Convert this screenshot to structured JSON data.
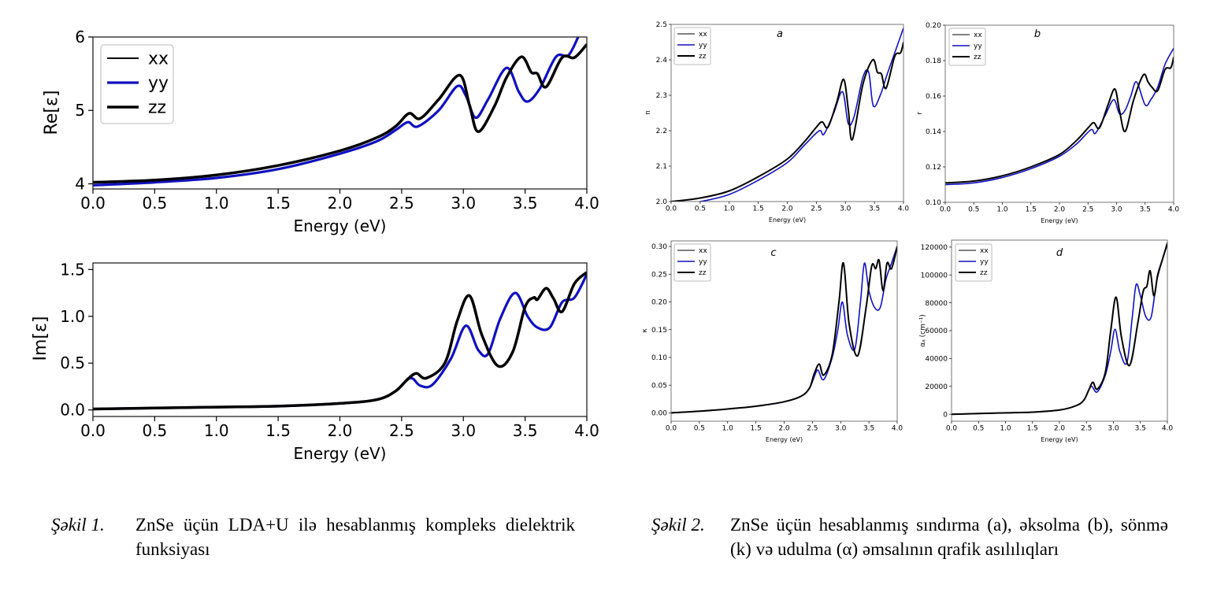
{
  "figure1_caption": {
    "label": "Şəkil 1.",
    "text": "ZnSe üçün LDA+U ilə hesablanmış kompleks dielektrik funksiyası"
  },
  "figure2_caption": {
    "label": "Şəkil 2.",
    "text": "ZnSe üçün hesablanmış sındırma (a), əksolma (b), sönmə (k) və udulma (α) əmsalının qrafik asılılıqları"
  },
  "colors": {
    "xx": "#000000",
    "yy": "#1010c0",
    "zz": "#000000"
  },
  "chart_data": [
    {
      "id": "re",
      "type": "line",
      "title": "",
      "xlabel": "Energy (eV)",
      "ylabel": "Re[ε]",
      "xlim": [
        0,
        4
      ],
      "ylim": [
        3.93,
        6
      ],
      "xticks": [
        "0.0",
        "0.5",
        "1.0",
        "1.5",
        "2.0",
        "2.5",
        "3.0",
        "3.5",
        "4.0"
      ],
      "yticks": [
        "4",
        "5",
        "6"
      ],
      "legend": [
        "xx",
        "yy",
        "zz"
      ],
      "legend_position": "top-left",
      "series": [
        {
          "name": "xx",
          "x": [
            0,
            0.5,
            1,
            1.5,
            2,
            2.3,
            2.45,
            2.56,
            2.65,
            2.8,
            2.97,
            3.05,
            3.12,
            3.25,
            3.35,
            3.47,
            3.55,
            3.6,
            3.67,
            3.8,
            3.9,
            4
          ],
          "y": [
            4.02,
            4.05,
            4.12,
            4.25,
            4.45,
            4.63,
            4.78,
            4.96,
            4.89,
            5.15,
            5.48,
            5.07,
            4.71,
            5.05,
            5.45,
            5.73,
            5.52,
            5.5,
            5.32,
            5.72,
            5.72,
            5.9
          ]
        },
        {
          "name": "yy",
          "x": [
            0,
            0.5,
            1,
            1.5,
            2,
            2.3,
            2.45,
            2.55,
            2.63,
            2.8,
            2.95,
            3.02,
            3.1,
            3.2,
            3.35,
            3.45,
            3.52,
            3.62,
            3.75,
            3.85,
            3.93
          ],
          "y": [
            3.98,
            4.02,
            4.08,
            4.2,
            4.41,
            4.58,
            4.73,
            4.84,
            4.78,
            5.0,
            5.33,
            5.2,
            4.9,
            5.15,
            5.58,
            5.25,
            5.12,
            5.3,
            5.73,
            5.75,
            6.0
          ]
        },
        {
          "name": "zz",
          "x": [
            0,
            0.5,
            1,
            1.5,
            2,
            2.3,
            2.45,
            2.56,
            2.65,
            2.8,
            2.97,
            3.05,
            3.12,
            3.25,
            3.35,
            3.47,
            3.55,
            3.6,
            3.67,
            3.8,
            3.9,
            4
          ],
          "y": [
            4.02,
            4.05,
            4.12,
            4.25,
            4.45,
            4.63,
            4.78,
            4.96,
            4.89,
            5.15,
            5.48,
            5.07,
            4.71,
            5.05,
            5.45,
            5.73,
            5.52,
            5.5,
            5.32,
            5.72,
            5.72,
            5.9
          ]
        }
      ]
    },
    {
      "id": "im",
      "type": "line",
      "title": "",
      "xlabel": "Energy (eV)",
      "ylabel": "Im[ε]",
      "xlim": [
        0,
        4
      ],
      "ylim": [
        -0.07,
        1.57
      ],
      "xticks": [
        "0.0",
        "0.5",
        "1.0",
        "1.5",
        "2.0",
        "2.5",
        "3.0",
        "3.5",
        "4.0"
      ],
      "yticks": [
        "0.0",
        "0.5",
        "1.0",
        "1.5"
      ],
      "legend": [],
      "series": [
        {
          "name": "xx",
          "x": [
            0,
            0.5,
            1,
            1.5,
            2,
            2.3,
            2.45,
            2.55,
            2.62,
            2.7,
            2.85,
            2.95,
            3.05,
            3.15,
            3.28,
            3.4,
            3.5,
            3.57,
            3.6,
            3.67,
            3.73,
            3.8,
            3.9,
            4
          ],
          "y": [
            0.01,
            0.02,
            0.03,
            0.04,
            0.07,
            0.11,
            0.2,
            0.33,
            0.39,
            0.34,
            0.5,
            0.95,
            1.22,
            0.8,
            0.47,
            0.62,
            1.1,
            1.2,
            1.18,
            1.3,
            1.19,
            1.05,
            1.35,
            1.47
          ]
        },
        {
          "name": "yy",
          "x": [
            0,
            0.5,
            1,
            1.5,
            2,
            2.3,
            2.45,
            2.57,
            2.65,
            2.75,
            2.9,
            3.02,
            3.12,
            3.2,
            3.3,
            3.42,
            3.52,
            3.6,
            3.7,
            3.8,
            3.9,
            4
          ],
          "y": [
            0.01,
            0.02,
            0.03,
            0.04,
            0.07,
            0.11,
            0.2,
            0.34,
            0.26,
            0.27,
            0.55,
            0.9,
            0.64,
            0.6,
            0.98,
            1.25,
            1.0,
            0.88,
            0.88,
            1.15,
            1.2,
            1.45
          ]
        },
        {
          "name": "zz",
          "x": [
            0,
            0.5,
            1,
            1.5,
            2,
            2.3,
            2.45,
            2.55,
            2.62,
            2.7,
            2.85,
            2.95,
            3.05,
            3.15,
            3.28,
            3.4,
            3.5,
            3.57,
            3.6,
            3.67,
            3.73,
            3.8,
            3.9,
            4
          ],
          "y": [
            0.01,
            0.02,
            0.03,
            0.04,
            0.07,
            0.11,
            0.2,
            0.33,
            0.39,
            0.34,
            0.5,
            0.95,
            1.22,
            0.8,
            0.47,
            0.62,
            1.1,
            1.2,
            1.18,
            1.3,
            1.19,
            1.05,
            1.35,
            1.47
          ]
        }
      ]
    },
    {
      "id": "n",
      "type": "line",
      "title": "a",
      "xlabel": "Energy (eV)",
      "ylabel": "n",
      "xlim": [
        0,
        4
      ],
      "ylim": [
        2.0,
        2.5
      ],
      "xticks": [
        "0.0",
        "0.5",
        "1.0",
        "1.5",
        "2.0",
        "2.5",
        "3.0",
        "3.5",
        "4.0"
      ],
      "yticks": [
        "2.0",
        "2.1",
        "2.2",
        "2.3",
        "2.4",
        "2.5"
      ],
      "legend": [
        "xx",
        "yy",
        "zz"
      ],
      "legend_position": "top-left",
      "series": [
        {
          "name": "xx",
          "x": [
            0,
            0.5,
            1,
            1.5,
            2,
            2.3,
            2.5,
            2.6,
            2.7,
            2.85,
            2.97,
            3.05,
            3.12,
            3.3,
            3.47,
            3.55,
            3.62,
            3.7,
            3.85,
            3.95,
            4
          ],
          "y": [
            2.0,
            2.01,
            2.03,
            2.07,
            2.12,
            2.17,
            2.21,
            2.225,
            2.21,
            2.28,
            2.345,
            2.26,
            2.175,
            2.33,
            2.4,
            2.365,
            2.36,
            2.32,
            2.41,
            2.42,
            2.45
          ]
        },
        {
          "name": "yy",
          "x": [
            0,
            0.5,
            1,
            1.5,
            2,
            2.3,
            2.55,
            2.63,
            2.8,
            2.95,
            3.05,
            3.15,
            3.3,
            3.4,
            3.48,
            3.6,
            3.72,
            3.85,
            4
          ],
          "y": [
            1.99,
            2.0,
            2.02,
            2.06,
            2.11,
            2.16,
            2.2,
            2.19,
            2.25,
            2.31,
            2.22,
            2.24,
            2.35,
            2.365,
            2.27,
            2.3,
            2.36,
            2.42,
            2.49
          ]
        },
        {
          "name": "zz",
          "x": [
            0,
            0.5,
            1,
            1.5,
            2,
            2.3,
            2.5,
            2.6,
            2.7,
            2.85,
            2.97,
            3.05,
            3.12,
            3.3,
            3.47,
            3.55,
            3.62,
            3.7,
            3.85,
            3.95,
            4
          ],
          "y": [
            2.0,
            2.01,
            2.03,
            2.07,
            2.12,
            2.17,
            2.21,
            2.225,
            2.21,
            2.28,
            2.345,
            2.26,
            2.175,
            2.33,
            2.4,
            2.365,
            2.36,
            2.32,
            2.41,
            2.42,
            2.45
          ]
        }
      ]
    },
    {
      "id": "r",
      "type": "line",
      "title": "b",
      "xlabel": "Energy (eV)",
      "ylabel": "r",
      "xlim": [
        0,
        4
      ],
      "ylim": [
        0.1,
        0.2
      ],
      "xticks": [
        "0.0",
        "0.5",
        "1.0",
        "1.5",
        "2.0",
        "2.5",
        "3.0",
        "3.5",
        "4.0"
      ],
      "yticks": [
        "0.10",
        "0.12",
        "0.14",
        "0.16",
        "0.18",
        "0.20"
      ],
      "legend": [
        "xx",
        "yy",
        "zz"
      ],
      "legend_position": "top-left",
      "series": [
        {
          "name": "xx",
          "x": [
            0,
            0.5,
            1,
            1.5,
            2,
            2.3,
            2.5,
            2.6,
            2.7,
            2.85,
            2.97,
            3.05,
            3.15,
            3.3,
            3.47,
            3.55,
            3.62,
            3.72,
            3.85,
            3.95,
            4
          ],
          "y": [
            0.111,
            0.112,
            0.115,
            0.12,
            0.127,
            0.135,
            0.142,
            0.145,
            0.142,
            0.155,
            0.164,
            0.152,
            0.14,
            0.158,
            0.172,
            0.168,
            0.165,
            0.163,
            0.175,
            0.176,
            0.182
          ]
        },
        {
          "name": "yy",
          "x": [
            0,
            0.5,
            1,
            1.5,
            2,
            2.3,
            2.55,
            2.63,
            2.8,
            2.95,
            3.05,
            3.15,
            3.25,
            3.35,
            3.5,
            3.6,
            3.72,
            3.85,
            4
          ],
          "y": [
            0.11,
            0.111,
            0.114,
            0.119,
            0.126,
            0.133,
            0.141,
            0.139,
            0.149,
            0.158,
            0.15,
            0.152,
            0.16,
            0.168,
            0.155,
            0.158,
            0.165,
            0.178,
            0.187
          ]
        },
        {
          "name": "zz",
          "x": [
            0,
            0.5,
            1,
            1.5,
            2,
            2.3,
            2.5,
            2.6,
            2.7,
            2.85,
            2.97,
            3.05,
            3.15,
            3.3,
            3.47,
            3.55,
            3.62,
            3.72,
            3.85,
            3.95,
            4
          ],
          "y": [
            0.111,
            0.112,
            0.115,
            0.12,
            0.127,
            0.135,
            0.142,
            0.145,
            0.142,
            0.155,
            0.164,
            0.152,
            0.14,
            0.158,
            0.172,
            0.168,
            0.165,
            0.163,
            0.175,
            0.176,
            0.182
          ]
        }
      ]
    },
    {
      "id": "k",
      "type": "line",
      "title": "c",
      "xlabel": "Energy (eV)",
      "ylabel": "κ",
      "xlim": [
        0,
        4
      ],
      "ylim": [
        -0.015,
        0.31
      ],
      "xticks": [
        "0.0",
        "0.5",
        "1.0",
        "1.5",
        "2.0",
        "2.5",
        "3.0",
        "3.5",
        "4.0"
      ],
      "yticks": [
        "0.00",
        "0.05",
        "0.10",
        "0.15",
        "0.20",
        "0.25",
        "0.30"
      ],
      "legend": [
        "xx",
        "yy",
        "zz"
      ],
      "legend_position": "top-left",
      "series": [
        {
          "name": "xx",
          "x": [
            0,
            0.5,
            1,
            1.5,
            2,
            2.3,
            2.45,
            2.53,
            2.62,
            2.7,
            2.85,
            2.97,
            3.05,
            3.15,
            3.3,
            3.45,
            3.55,
            3.62,
            3.68,
            3.75,
            3.82,
            3.9,
            4
          ],
          "y": [
            0,
            0.003,
            0.007,
            0.012,
            0.02,
            0.03,
            0.045,
            0.07,
            0.088,
            0.068,
            0.105,
            0.2,
            0.27,
            0.16,
            0.103,
            0.19,
            0.265,
            0.26,
            0.275,
            0.22,
            0.27,
            0.26,
            0.3
          ]
        },
        {
          "name": "yy",
          "x": [
            0,
            0.5,
            1,
            1.5,
            2,
            2.3,
            2.45,
            2.55,
            2.6,
            2.7,
            2.85,
            2.95,
            3.03,
            3.12,
            3.25,
            3.35,
            3.42,
            3.5,
            3.6,
            3.7,
            3.8,
            3.9,
            4
          ],
          "y": [
            0,
            0.003,
            0.007,
            0.012,
            0.02,
            0.03,
            0.045,
            0.07,
            0.077,
            0.06,
            0.1,
            0.15,
            0.2,
            0.14,
            0.115,
            0.2,
            0.27,
            0.22,
            0.19,
            0.19,
            0.24,
            0.27,
            0.3
          ]
        },
        {
          "name": "zz",
          "x": [
            0,
            0.5,
            1,
            1.5,
            2,
            2.3,
            2.45,
            2.53,
            2.62,
            2.7,
            2.85,
            2.97,
            3.05,
            3.15,
            3.3,
            3.45,
            3.55,
            3.62,
            3.68,
            3.75,
            3.82,
            3.9,
            4
          ],
          "y": [
            0,
            0.003,
            0.007,
            0.012,
            0.02,
            0.03,
            0.045,
            0.07,
            0.088,
            0.068,
            0.105,
            0.2,
            0.27,
            0.16,
            0.103,
            0.19,
            0.265,
            0.26,
            0.275,
            0.22,
            0.27,
            0.26,
            0.3
          ]
        }
      ]
    },
    {
      "id": "alpha",
      "type": "line",
      "title": "d",
      "xlabel": "Energy (eV)",
      "ylabel": "αₐ (cm⁻¹)",
      "xlim": [
        0,
        4
      ],
      "ylim": [
        -5000,
        125000
      ],
      "xticks": [
        "0.0",
        "0.5",
        "1.0",
        "1.5",
        "2.0",
        "2.5",
        "3.0",
        "3.5",
        "4.0"
      ],
      "yticks": [
        "0",
        "20000",
        "40000",
        "60000",
        "80000",
        "100000",
        "120000"
      ],
      "legend": [
        "xx",
        "yy",
        "zz"
      ],
      "legend_position": "top-left",
      "series": [
        {
          "name": "xx",
          "x": [
            0,
            0.5,
            1,
            1.5,
            2,
            2.3,
            2.45,
            2.55,
            2.62,
            2.7,
            2.85,
            2.95,
            3.05,
            3.15,
            3.3,
            3.45,
            3.55,
            3.62,
            3.68,
            3.75,
            3.82,
            3.9,
            4
          ],
          "y": [
            0,
            500,
            1000,
            1500,
            3000,
            6000,
            10000,
            18000,
            23000,
            18000,
            30000,
            60000,
            84000,
            55000,
            35000,
            65000,
            88000,
            92000,
            103000,
            85000,
            100000,
            110000,
            123000
          ]
        },
        {
          "name": "yy",
          "x": [
            0,
            0.5,
            1,
            1.5,
            2,
            2.3,
            2.45,
            2.55,
            2.6,
            2.7,
            2.85,
            2.95,
            3.03,
            3.12,
            3.25,
            3.35,
            3.42,
            3.5,
            3.6,
            3.7,
            3.8,
            3.9,
            4
          ],
          "y": [
            0,
            500,
            1000,
            1500,
            3000,
            6000,
            10000,
            18000,
            20000,
            16000,
            28000,
            45000,
            61000,
            45000,
            37000,
            70000,
            93000,
            85000,
            70000,
            70000,
            95000,
            110000,
            122000
          ]
        },
        {
          "name": "zz",
          "x": [
            0,
            0.5,
            1,
            1.5,
            2,
            2.3,
            2.45,
            2.55,
            2.62,
            2.7,
            2.85,
            2.95,
            3.05,
            3.15,
            3.3,
            3.45,
            3.55,
            3.62,
            3.68,
            3.75,
            3.82,
            3.9,
            4
          ],
          "y": [
            0,
            500,
            1000,
            1500,
            3000,
            6000,
            10000,
            18000,
            23000,
            18000,
            30000,
            60000,
            84000,
            55000,
            35000,
            65000,
            88000,
            92000,
            103000,
            85000,
            100000,
            110000,
            123000
          ]
        }
      ]
    }
  ]
}
